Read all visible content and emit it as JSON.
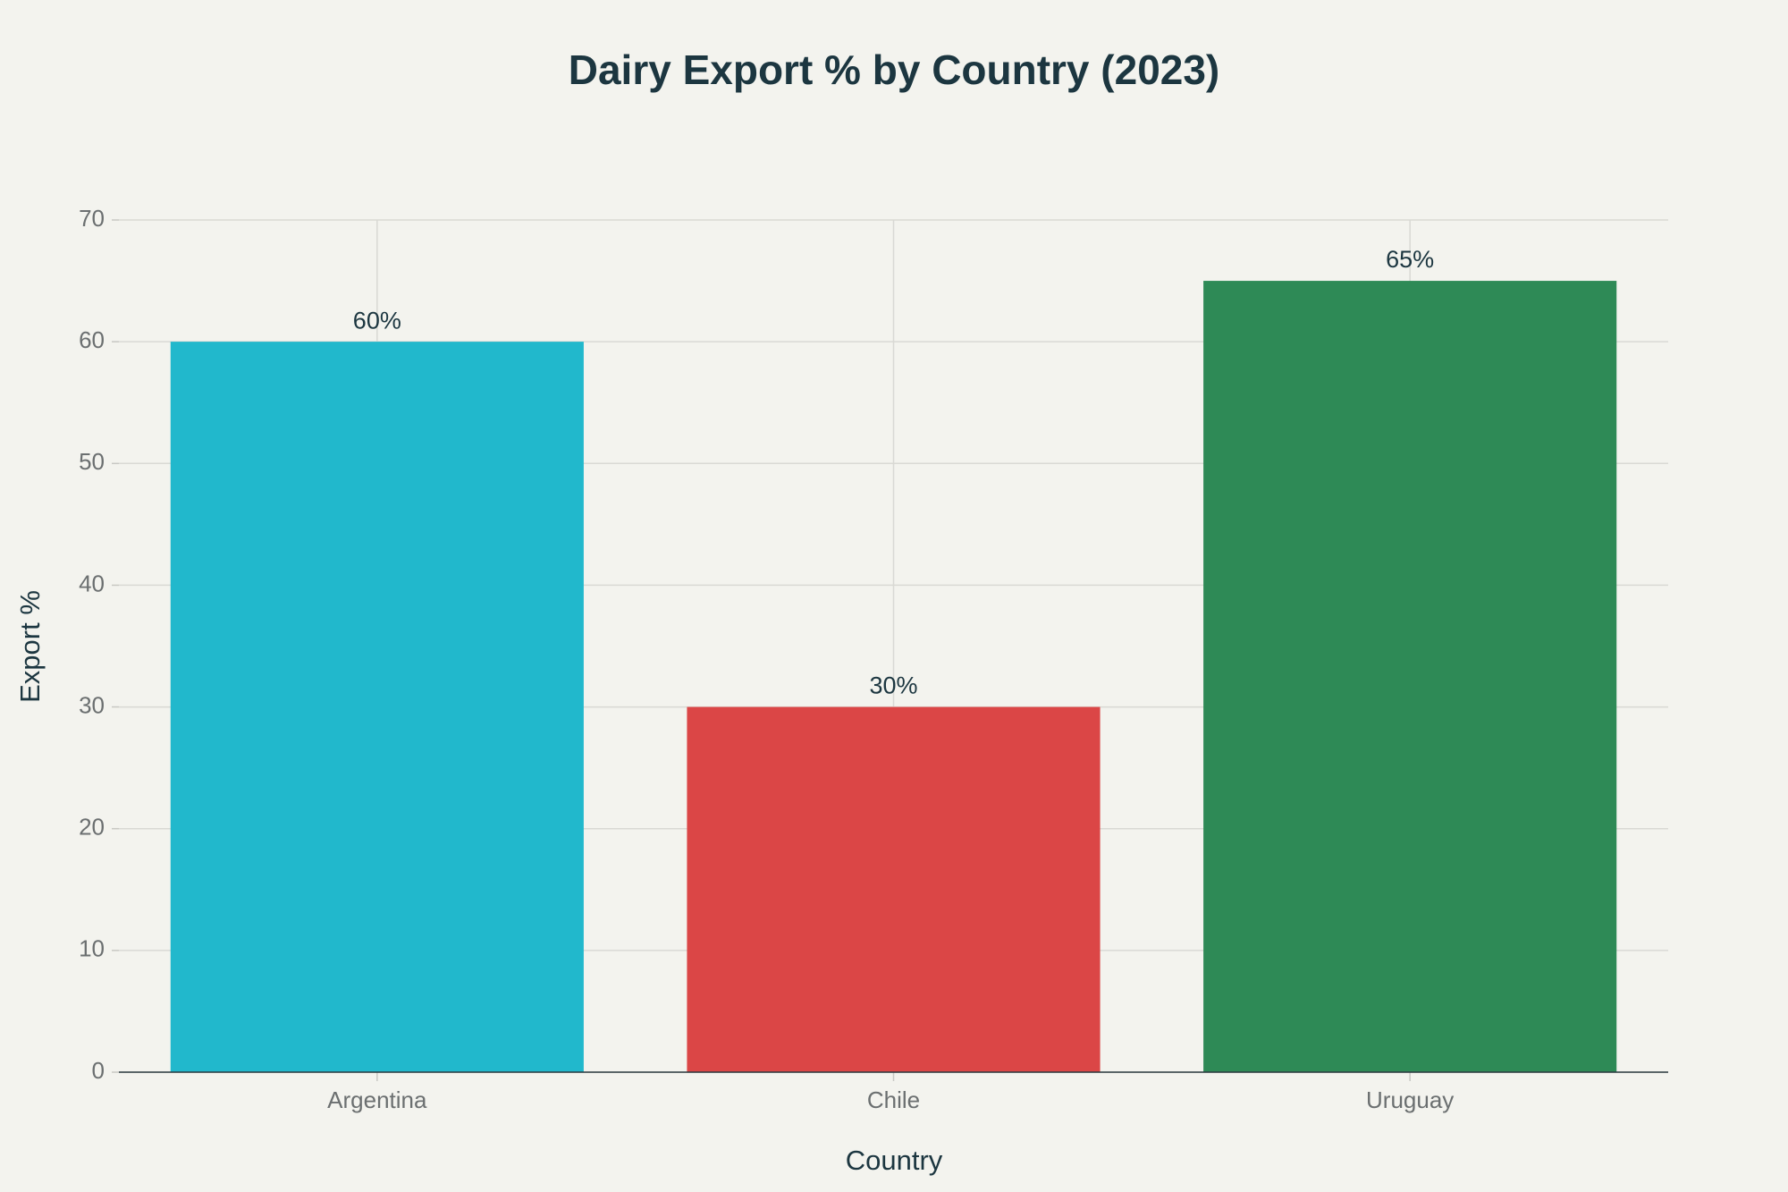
{
  "chart_data": {
    "type": "bar",
    "title": "Dairy Export % by Country (2023)",
    "x_label": "Country",
    "y_label": "Export %",
    "categories": [
      "Argentina",
      "Chile",
      "Uruguay"
    ],
    "values": [
      60,
      30,
      65
    ],
    "value_labels": [
      "60%",
      "30%",
      "65%"
    ],
    "colors": [
      "#21b8cc",
      "#db4646",
      "#2e8a56"
    ],
    "ylim": [
      0,
      70
    ],
    "yticks": [
      0,
      10,
      20,
      30,
      40,
      50,
      60,
      70
    ],
    "grid": true
  }
}
